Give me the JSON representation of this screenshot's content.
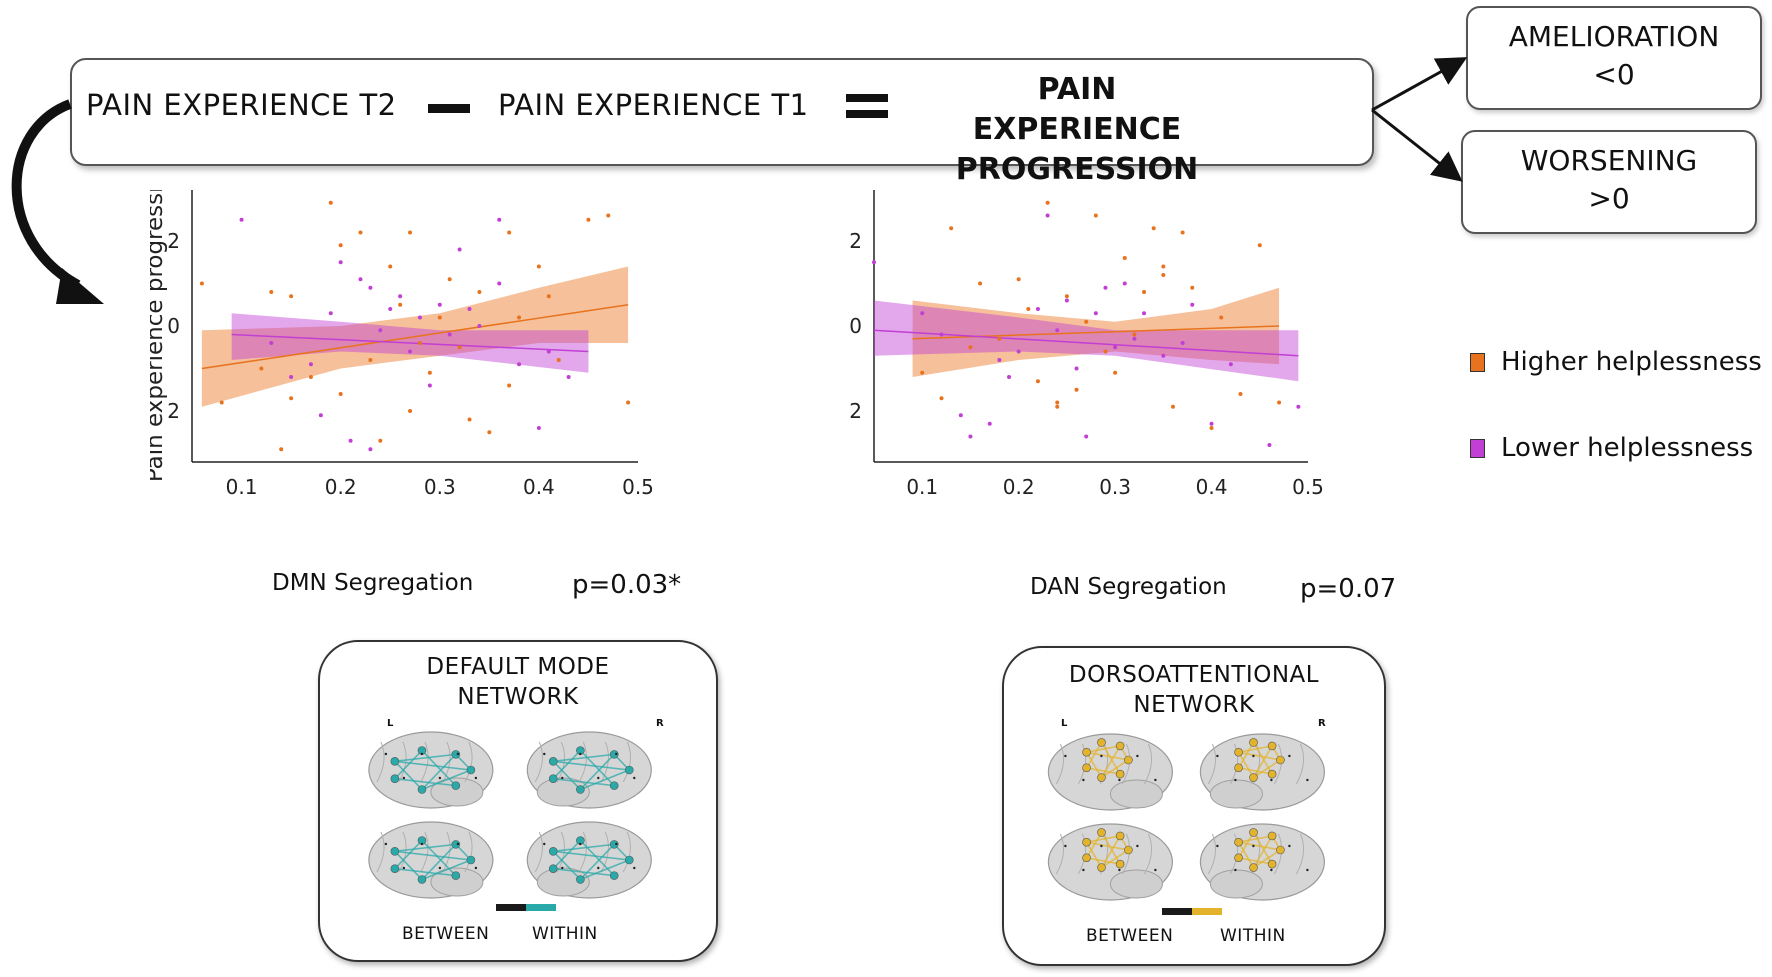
{
  "equation": {
    "term_t2": "PAIN EXPERIENCE T2",
    "term_t1": "PAIN EXPERIENCE T1",
    "result_line1": "PAIN EXPERIENCE",
    "result_line2": "PROGRESSION"
  },
  "outcomes": {
    "amelioration_title": "AMELIORATION",
    "amelioration_rule": "<0",
    "worsening_title": "WORSENING",
    "worsening_rule": ">0"
  },
  "colors": {
    "higher": "#e8731e",
    "lower": "#c23fd4",
    "dmn": "#2aa9a9",
    "dan": "#e3b42b"
  },
  "legend": {
    "higher": "Higher helplessness",
    "lower": "Lower helplessness"
  },
  "chart_data": [
    {
      "type": "scatter",
      "ylabel": "Pain experience progression",
      "xlabel": "DMN Segregation",
      "p_value": "p=0.03*",
      "xlim": [
        0.05,
        0.5
      ],
      "ylim": [
        -3.2,
        3.2
      ],
      "x_ticks": [
        "0.1",
        "0.2",
        "0.3",
        "0.4",
        "0.5"
      ],
      "y_ticks": [
        "2",
        "0",
        "2"
      ],
      "series": [
        {
          "name": "Higher helplessness",
          "trend": {
            "x0": 0.06,
            "y0": -1.0,
            "x1": 0.49,
            "y1": 0.5
          },
          "ci": [
            [
              0.06,
              -1.9,
              -0.1
            ],
            [
              0.2,
              -1.0,
              0.0
            ],
            [
              0.3,
              -0.7,
              0.3
            ],
            [
              0.4,
              -0.4,
              0.9
            ],
            [
              0.49,
              -0.4,
              1.4
            ]
          ],
          "points": [
            [
              0.06,
              1.0
            ],
            [
              0.08,
              -1.8
            ],
            [
              0.12,
              -1.0
            ],
            [
              0.13,
              0.8
            ],
            [
              0.15,
              0.7
            ],
            [
              0.15,
              -1.7
            ],
            [
              0.17,
              -1.2
            ],
            [
              0.19,
              2.9
            ],
            [
              0.2,
              -1.6
            ],
            [
              0.2,
              1.9
            ],
            [
              0.22,
              2.2
            ],
            [
              0.23,
              -0.8
            ],
            [
              0.24,
              -2.7
            ],
            [
              0.25,
              1.4
            ],
            [
              0.26,
              0.5
            ],
            [
              0.27,
              -2.0
            ],
            [
              0.28,
              -0.4
            ],
            [
              0.29,
              -1.1
            ],
            [
              0.3,
              0.2
            ],
            [
              0.31,
              1.1
            ],
            [
              0.32,
              -0.5
            ],
            [
              0.33,
              -2.2
            ],
            [
              0.34,
              0.8
            ],
            [
              0.35,
              -2.5
            ],
            [
              0.37,
              2.2
            ],
            [
              0.37,
              -1.4
            ],
            [
              0.38,
              0.2
            ],
            [
              0.4,
              1.4
            ],
            [
              0.41,
              0.7
            ],
            [
              0.42,
              -0.8
            ],
            [
              0.45,
              2.5
            ],
            [
              0.47,
              2.6
            ],
            [
              0.49,
              -1.8
            ],
            [
              0.14,
              -2.9
            ],
            [
              0.27,
              2.2
            ]
          ]
        },
        {
          "name": "Lower helplessness",
          "trend": {
            "x0": 0.09,
            "y0": -0.2,
            "x1": 0.45,
            "y1": -0.6
          },
          "ci": [
            [
              0.09,
              -0.8,
              0.3
            ],
            [
              0.2,
              -0.6,
              0.1
            ],
            [
              0.3,
              -0.7,
              -0.1
            ],
            [
              0.45,
              -1.1,
              -0.1
            ]
          ],
          "points": [
            [
              0.1,
              2.5
            ],
            [
              0.13,
              -0.4
            ],
            [
              0.15,
              -1.2
            ],
            [
              0.17,
              -0.9
            ],
            [
              0.18,
              -2.1
            ],
            [
              0.19,
              0.3
            ],
            [
              0.2,
              1.5
            ],
            [
              0.21,
              -2.7
            ],
            [
              0.22,
              1.1
            ],
            [
              0.23,
              0.9
            ],
            [
              0.24,
              -0.1
            ],
            [
              0.25,
              0.4
            ],
            [
              0.26,
              0.7
            ],
            [
              0.27,
              -0.6
            ],
            [
              0.28,
              0.2
            ],
            [
              0.29,
              -1.4
            ],
            [
              0.3,
              0.5
            ],
            [
              0.31,
              -0.2
            ],
            [
              0.32,
              1.8
            ],
            [
              0.33,
              0.4
            ],
            [
              0.34,
              0.0
            ],
            [
              0.36,
              1.0
            ],
            [
              0.38,
              -0.9
            ],
            [
              0.4,
              -2.4
            ],
            [
              0.41,
              -0.6
            ],
            [
              0.43,
              -1.2
            ],
            [
              0.23,
              -2.9
            ],
            [
              0.36,
              2.5
            ]
          ]
        }
      ]
    },
    {
      "type": "scatter",
      "xlabel": "DAN Segregation",
      "p_value": "p=0.07",
      "xlim": [
        0.05,
        0.5
      ],
      "ylim": [
        -3.2,
        3.2
      ],
      "x_ticks": [
        "0.1",
        "0.2",
        "0.3",
        "0.4",
        "0.5"
      ],
      "y_ticks": [
        "2",
        "0",
        "2"
      ],
      "series": [
        {
          "name": "Higher helplessness",
          "trend": {
            "x0": 0.09,
            "y0": -0.3,
            "x1": 0.47,
            "y1": 0.0
          },
          "ci": [
            [
              0.09,
              -1.2,
              0.6
            ],
            [
              0.2,
              -0.8,
              0.3
            ],
            [
              0.3,
              -0.6,
              0.1
            ],
            [
              0.4,
              -0.8,
              0.4
            ],
            [
              0.47,
              -0.9,
              0.9
            ]
          ],
          "points": [
            [
              0.1,
              -1.1
            ],
            [
              0.12,
              -1.7
            ],
            [
              0.13,
              2.3
            ],
            [
              0.15,
              -0.5
            ],
            [
              0.16,
              1.0
            ],
            [
              0.18,
              -0.3
            ],
            [
              0.2,
              1.1
            ],
            [
              0.21,
              0.4
            ],
            [
              0.22,
              -1.3
            ],
            [
              0.23,
              2.9
            ],
            [
              0.24,
              -1.8
            ],
            [
              0.25,
              0.7
            ],
            [
              0.26,
              -1.5
            ],
            [
              0.27,
              0.1
            ],
            [
              0.28,
              2.6
            ],
            [
              0.29,
              -0.6
            ],
            [
              0.3,
              -1.1
            ],
            [
              0.31,
              1.6
            ],
            [
              0.32,
              -0.2
            ],
            [
              0.33,
              0.8
            ],
            [
              0.34,
              2.3
            ],
            [
              0.35,
              1.4
            ],
            [
              0.36,
              -1.9
            ],
            [
              0.37,
              2.2
            ],
            [
              0.38,
              0.9
            ],
            [
              0.4,
              -2.4
            ],
            [
              0.41,
              0.2
            ],
            [
              0.43,
              -1.6
            ],
            [
              0.45,
              1.9
            ],
            [
              0.47,
              -1.8
            ],
            [
              0.24,
              -1.9
            ],
            [
              0.35,
              1.2
            ]
          ]
        },
        {
          "name": "Lower helplessness",
          "trend": {
            "x0": 0.05,
            "y0": -0.1,
            "x1": 0.49,
            "y1": -0.7
          },
          "ci": [
            [
              0.05,
              -0.7,
              0.6
            ],
            [
              0.2,
              -0.6,
              0.2
            ],
            [
              0.3,
              -0.7,
              -0.1
            ],
            [
              0.49,
              -1.3,
              -0.1
            ]
          ],
          "points": [
            [
              0.05,
              1.5
            ],
            [
              0.1,
              0.3
            ],
            [
              0.12,
              -0.2
            ],
            [
              0.14,
              -2.1
            ],
            [
              0.15,
              -2.6
            ],
            [
              0.17,
              -2.3
            ],
            [
              0.18,
              -0.8
            ],
            [
              0.19,
              -1.2
            ],
            [
              0.2,
              -0.6
            ],
            [
              0.22,
              0.4
            ],
            [
              0.23,
              2.6
            ],
            [
              0.24,
              -0.1
            ],
            [
              0.25,
              0.6
            ],
            [
              0.26,
              -1.0
            ],
            [
              0.27,
              -2.6
            ],
            [
              0.28,
              0.3
            ],
            [
              0.29,
              0.9
            ],
            [
              0.3,
              -0.5
            ],
            [
              0.31,
              1.0
            ],
            [
              0.32,
              -0.3
            ],
            [
              0.33,
              0.3
            ],
            [
              0.35,
              -0.7
            ],
            [
              0.37,
              -0.4
            ],
            [
              0.38,
              0.5
            ],
            [
              0.4,
              -2.3
            ],
            [
              0.42,
              -0.9
            ],
            [
              0.46,
              -2.8
            ],
            [
              0.49,
              -1.9
            ]
          ]
        }
      ]
    }
  ],
  "networks": {
    "dmn_title_line1": "DEFAULT MODE",
    "dmn_title_line2": "NETWORK",
    "dan_title_line1": "DORSOATTENTIONAL",
    "dan_title_line2": "NETWORK",
    "hemi_left": "L",
    "hemi_right": "R",
    "between": "BETWEEN",
    "within": "WITHIN"
  }
}
